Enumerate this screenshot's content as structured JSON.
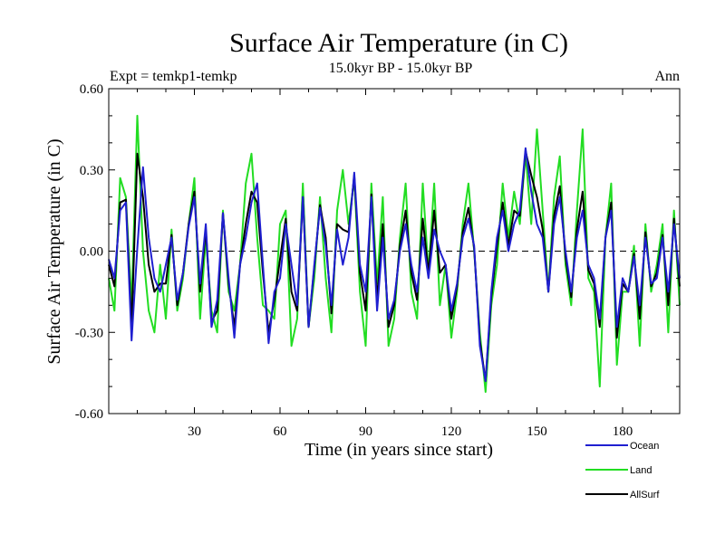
{
  "chart_data": {
    "type": "line",
    "title": "Surface Air Temperature (in C)",
    "subtitle": "15.0kyr BP - 15.0kyr BP",
    "left_label": "Expt = temkp1-temkp",
    "right_label": "Ann",
    "xlabel": "Time (in years since start)",
    "ylabel": "Surface Air Temperature (in C)",
    "xlim": [
      0,
      200
    ],
    "ylim": [
      -0.6,
      0.6
    ],
    "x_ticks": [
      30,
      60,
      90,
      120,
      150,
      180
    ],
    "y_ticks": [
      -0.6,
      -0.3,
      0.0,
      0.3,
      0.6
    ],
    "y_tick_labels": [
      "-0.60",
      "-0.30",
      "0.00",
      "0.30",
      "0.60"
    ],
    "zero_line": "dashed",
    "legend_position": "bottom-right",
    "x": [
      0,
      2,
      4,
      6,
      8,
      10,
      12,
      14,
      16,
      18,
      20,
      22,
      24,
      26,
      28,
      30,
      32,
      34,
      36,
      38,
      40,
      42,
      44,
      46,
      48,
      50,
      52,
      54,
      56,
      58,
      60,
      62,
      64,
      66,
      68,
      70,
      72,
      74,
      76,
      78,
      80,
      82,
      84,
      86,
      88,
      90,
      92,
      94,
      96,
      98,
      100,
      102,
      104,
      106,
      108,
      110,
      112,
      114,
      116,
      118,
      120,
      122,
      124,
      126,
      128,
      130,
      132,
      134,
      136,
      138,
      140,
      142,
      144,
      146,
      148,
      150,
      152,
      154,
      156,
      158,
      160,
      162,
      164,
      166,
      168,
      170,
      172,
      174,
      176,
      178,
      180,
      182,
      184,
      186,
      188,
      190,
      192,
      194,
      196,
      198,
      200
    ],
    "series": [
      {
        "name": "Ocean",
        "color": "#1f1fd0",
        "values": [
          -0.03,
          -0.1,
          0.15,
          0.18,
          -0.33,
          0.01,
          0.31,
          0.05,
          -0.1,
          -0.15,
          -0.05,
          0.05,
          -0.18,
          -0.08,
          0.09,
          0.2,
          -0.12,
          0.1,
          -0.28,
          -0.18,
          0.14,
          -0.1,
          -0.32,
          -0.05,
          0.05,
          0.18,
          0.25,
          -0.05,
          -0.34,
          -0.15,
          -0.1,
          0.1,
          -0.05,
          -0.2,
          0.2,
          -0.28,
          -0.05,
          0.16,
          0.02,
          -0.2,
          0.08,
          -0.05,
          0.05,
          0.29,
          -0.05,
          -0.15,
          0.2,
          -0.22,
          0.05,
          -0.25,
          -0.18,
          0.0,
          0.1,
          -0.05,
          -0.15,
          0.05,
          -0.1,
          0.08,
          0.0,
          -0.05,
          -0.22,
          -0.12,
          0.05,
          0.12,
          0.02,
          -0.35,
          -0.48,
          -0.15,
          0.05,
          0.15,
          0.0,
          0.1,
          0.15,
          0.38,
          0.22,
          0.1,
          0.05,
          -0.15,
          0.1,
          0.2,
          0.0,
          -0.15,
          0.05,
          0.15,
          -0.05,
          -0.1,
          -0.25,
          0.05,
          0.15,
          -0.28,
          -0.1,
          -0.15,
          -0.02,
          -0.2,
          0.05,
          -0.12,
          -0.1,
          0.05,
          -0.15,
          0.1,
          -0.1
        ]
      },
      {
        "name": "Land",
        "color": "#22dd22",
        "values": [
          -0.1,
          -0.22,
          0.27,
          0.2,
          -0.2,
          0.5,
          0.0,
          -0.22,
          -0.3,
          -0.05,
          -0.25,
          0.08,
          -0.22,
          -0.1,
          0.1,
          0.27,
          -0.25,
          0.05,
          -0.22,
          -0.3,
          0.15,
          -0.15,
          -0.22,
          -0.05,
          0.25,
          0.36,
          0.05,
          -0.2,
          -0.22,
          -0.25,
          0.1,
          0.15,
          -0.35,
          -0.25,
          0.25,
          -0.28,
          -0.1,
          0.2,
          -0.1,
          -0.3,
          0.15,
          0.3,
          0.1,
          0.27,
          -0.15,
          -0.35,
          0.25,
          -0.12,
          0.2,
          -0.35,
          -0.25,
          0.05,
          0.25,
          -0.15,
          -0.25,
          0.25,
          -0.08,
          0.25,
          -0.2,
          -0.05,
          -0.32,
          -0.15,
          0.1,
          0.25,
          0.0,
          -0.3,
          -0.52,
          -0.2,
          -0.05,
          0.25,
          0.05,
          0.22,
          0.1,
          0.36,
          0.1,
          0.45,
          0.15,
          -0.15,
          0.2,
          0.35,
          -0.05,
          -0.2,
          0.15,
          0.45,
          -0.1,
          -0.15,
          -0.5,
          0.05,
          0.25,
          -0.42,
          -0.15,
          -0.15,
          0.02,
          -0.35,
          0.1,
          -0.15,
          -0.05,
          0.1,
          -0.3,
          0.15,
          -0.2
        ]
      },
      {
        "name": "AllSurf",
        "color": "#000000",
        "values": [
          -0.05,
          -0.13,
          0.18,
          0.19,
          -0.28,
          0.36,
          0.2,
          -0.05,
          -0.15,
          -0.12,
          -0.12,
          0.06,
          -0.2,
          -0.08,
          0.1,
          0.22,
          -0.15,
          0.08,
          -0.26,
          -0.22,
          0.14,
          -0.12,
          -0.28,
          -0.05,
          0.1,
          0.22,
          0.18,
          -0.08,
          -0.3,
          -0.18,
          -0.03,
          0.12,
          -0.15,
          -0.22,
          0.2,
          -0.28,
          -0.06,
          0.17,
          0.05,
          -0.23,
          0.1,
          0.08,
          0.07,
          0.28,
          -0.08,
          -0.22,
          0.21,
          -0.18,
          0.1,
          -0.28,
          -0.2,
          0.02,
          0.15,
          -0.08,
          -0.18,
          0.12,
          -0.08,
          0.15,
          -0.08,
          -0.05,
          -0.25,
          -0.13,
          0.07,
          0.16,
          0.01,
          -0.33,
          -0.48,
          -0.17,
          0.02,
          0.18,
          0.02,
          0.15,
          0.13,
          0.37,
          0.28,
          0.2,
          0.08,
          -0.15,
          0.13,
          0.24,
          -0.02,
          -0.17,
          0.08,
          0.22,
          -0.07,
          -0.12,
          -0.28,
          0.05,
          0.18,
          -0.32,
          -0.12,
          -0.15,
          -0.01,
          -0.25,
          0.07,
          -0.13,
          -0.08,
          0.06,
          -0.2,
          0.12,
          -0.13
        ]
      }
    ]
  }
}
